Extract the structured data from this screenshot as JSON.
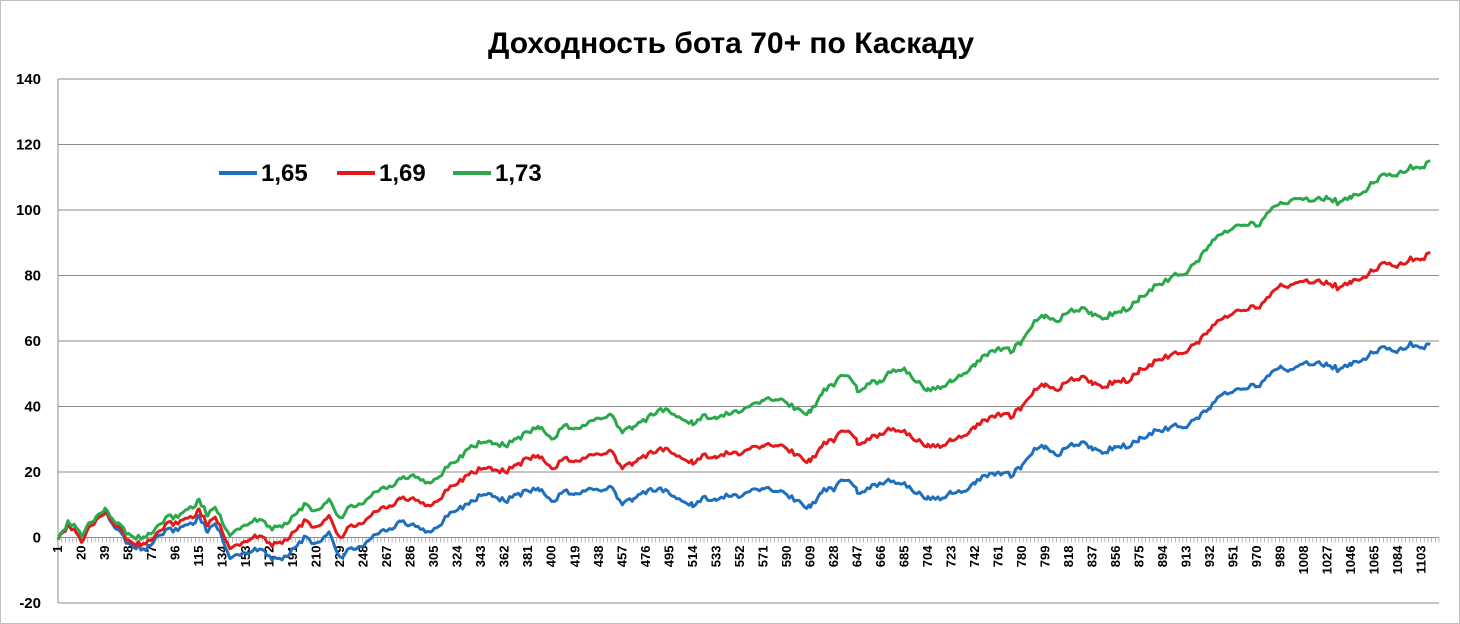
{
  "chart_data": {
    "type": "line",
    "title": "Доходность бота 70+ по Каскаду",
    "xlabel": "",
    "ylabel": "",
    "ylim": [
      -20,
      140
    ],
    "yticks": [
      -20,
      0,
      20,
      40,
      60,
      80,
      100,
      120,
      140
    ],
    "xlim": [
      1,
      1117
    ],
    "xtick_labels": [
      "1",
      "20",
      "39",
      "58",
      "77",
      "96",
      "115",
      "134",
      "153",
      "172",
      "191",
      "210",
      "229",
      "248",
      "267",
      "286",
      "305",
      "324",
      "343",
      "362",
      "381",
      "400",
      "419",
      "438",
      "457",
      "476",
      "495",
      "514",
      "533",
      "552",
      "571",
      "590",
      "609",
      "628",
      "647",
      "666",
      "685",
      "704",
      "723",
      "742",
      "761",
      "780",
      "799",
      "818",
      "837",
      "856",
      "875",
      "894",
      "913",
      "932",
      "951",
      "970",
      "989",
      "1008",
      "1027",
      "1046",
      "1065",
      "1084",
      "1103"
    ],
    "grid": "horizontal",
    "legend_position": "top-left",
    "series": [
      {
        "name": "1,65",
        "color": "#1f6fbf",
        "x": [
          1,
          10,
          20,
          28,
          39,
          50,
          58,
          66,
          72,
          80,
          90,
          100,
          108,
          115,
          122,
          128,
          134,
          140,
          148,
          156,
          164,
          172,
          180,
          190,
          200,
          210,
          220,
          229,
          238,
          248,
          258,
          267,
          278,
          286,
          296,
          305,
          314,
          324,
          333,
          343,
          352,
          362,
          371,
          381,
          390,
          400,
          410,
          419,
          428,
          438,
          447,
          457,
          466,
          476,
          486,
          495,
          505,
          514,
          524,
          533,
          543,
          552,
          562,
          571,
          581,
          590,
          600,
          609,
          618,
          628,
          638,
          647,
          657,
          666,
          676,
          685,
          695,
          704,
          714,
          723,
          733,
          742,
          752,
          761,
          771,
          780,
          790,
          799,
          809,
          818,
          828,
          837,
          847,
          856,
          866,
          875,
          885,
          894,
          904,
          913,
          923,
          932,
          942,
          951,
          961,
          970,
          980,
          989,
          999,
          1008,
          1018,
          1027,
          1037,
          1046,
          1056,
          1065,
          1075,
          1084,
          1094,
          1103,
          1110
        ],
        "values": [
          0,
          4,
          -1,
          4,
          8,
          2,
          -2,
          -3,
          -4,
          0,
          2,
          3,
          4,
          6,
          2,
          4,
          0,
          -7,
          -5,
          -5,
          -3,
          -6,
          -7,
          -4,
          0,
          -2,
          1,
          -6,
          -3,
          -3,
          1,
          2,
          5,
          4,
          2,
          2,
          6,
          9,
          10,
          13,
          13,
          11,
          13,
          14,
          15,
          11,
          14,
          13,
          15,
          14,
          16,
          10,
          12,
          14,
          15,
          14,
          11,
          10,
          12,
          11,
          13,
          12,
          14,
          15,
          14,
          13,
          11,
          9,
          14,
          15,
          18,
          14,
          15,
          17,
          17,
          16,
          14,
          12,
          12,
          14,
          14,
          17,
          19,
          20,
          19,
          22,
          27,
          28,
          25,
          28,
          29,
          27,
          26,
          28,
          28,
          30,
          32,
          33,
          34,
          34,
          37,
          40,
          44,
          45,
          46,
          46,
          50,
          52,
          51,
          53,
          53,
          53,
          51,
          53,
          54,
          57,
          58,
          57,
          59,
          58,
          59
        ]
      },
      {
        "name": "1,69",
        "color": "#e31a1c",
        "x": [
          1,
          10,
          20,
          28,
          39,
          50,
          58,
          66,
          72,
          80,
          90,
          100,
          108,
          115,
          122,
          128,
          134,
          140,
          148,
          156,
          164,
          172,
          180,
          190,
          200,
          210,
          220,
          229,
          238,
          248,
          258,
          267,
          278,
          286,
          296,
          305,
          314,
          324,
          333,
          343,
          352,
          362,
          371,
          381,
          390,
          400,
          410,
          419,
          428,
          438,
          447,
          457,
          466,
          476,
          486,
          495,
          505,
          514,
          524,
          533,
          543,
          552,
          562,
          571,
          581,
          590,
          600,
          609,
          618,
          628,
          638,
          647,
          657,
          666,
          676,
          685,
          695,
          704,
          714,
          723,
          733,
          742,
          752,
          761,
          771,
          780,
          790,
          799,
          809,
          818,
          828,
          837,
          847,
          856,
          866,
          875,
          885,
          894,
          904,
          913,
          923,
          932,
          942,
          951,
          961,
          970,
          980,
          989,
          999,
          1008,
          1018,
          1027,
          1037,
          1046,
          1056,
          1065,
          1075,
          1084,
          1094,
          1103,
          1110
        ],
        "values": [
          0,
          4,
          -1,
          4,
          8,
          3,
          -1,
          -2,
          -2,
          1,
          4,
          5,
          6,
          8,
          4,
          6,
          2,
          -4,
          -2,
          -1,
          1,
          -2,
          -2,
          1,
          5,
          3,
          6,
          0,
          4,
          4,
          8,
          9,
          12,
          12,
          10,
          10,
          14,
          17,
          19,
          21,
          21,
          20,
          22,
          24,
          25,
          21,
          24,
          23,
          25,
          25,
          27,
          21,
          23,
          25,
          27,
          27,
          24,
          23,
          25,
          24,
          26,
          25,
          27,
          28,
          28,
          27,
          25,
          23,
          28,
          30,
          33,
          29,
          30,
          32,
          33,
          32,
          30,
          28,
          28,
          30,
          31,
          34,
          36,
          38,
          37,
          40,
          45,
          47,
          45,
          48,
          49,
          47,
          46,
          48,
          48,
          51,
          53,
          55,
          56,
          57,
          60,
          64,
          67,
          69,
          70,
          70,
          74,
          77,
          77,
          78,
          78,
          78,
          76,
          78,
          79,
          82,
          84,
          83,
          85,
          85,
          87
        ]
      },
      {
        "name": "1,73",
        "color": "#2aa84a",
        "x": [
          1,
          10,
          20,
          28,
          39,
          50,
          58,
          66,
          72,
          80,
          90,
          100,
          108,
          115,
          122,
          128,
          134,
          140,
          148,
          156,
          164,
          172,
          180,
          190,
          200,
          210,
          220,
          229,
          238,
          248,
          258,
          267,
          278,
          286,
          296,
          305,
          314,
          324,
          333,
          343,
          352,
          362,
          371,
          381,
          390,
          400,
          410,
          419,
          428,
          438,
          447,
          457,
          466,
          476,
          486,
          495,
          505,
          514,
          524,
          533,
          543,
          552,
          562,
          571,
          581,
          590,
          600,
          609,
          618,
          628,
          638,
          647,
          657,
          666,
          676,
          685,
          695,
          704,
          714,
          723,
          733,
          742,
          752,
          761,
          771,
          780,
          790,
          799,
          809,
          818,
          828,
          837,
          847,
          856,
          866,
          875,
          885,
          894,
          904,
          913,
          923,
          932,
          942,
          951,
          961,
          970,
          980,
          989,
          999,
          1008,
          1018,
          1027,
          1037,
          1046,
          1056,
          1065,
          1075,
          1084,
          1094,
          1103,
          1110
        ],
        "values": [
          0,
          5,
          1,
          5,
          9,
          4,
          1,
          0,
          0,
          3,
          6,
          7,
          9,
          11,
          7,
          9,
          5,
          0,
          3,
          4,
          6,
          3,
          3,
          6,
          10,
          8,
          11,
          6,
          10,
          10,
          14,
          15,
          18,
          19,
          17,
          17,
          21,
          24,
          27,
          29,
          29,
          28,
          30,
          32,
          34,
          30,
          34,
          33,
          35,
          36,
          38,
          32,
          34,
          36,
          39,
          39,
          36,
          35,
          37,
          36,
          38,
          38,
          40,
          42,
          42,
          41,
          39,
          38,
          44,
          47,
          50,
          45,
          47,
          48,
          51,
          51,
          48,
          45,
          46,
          48,
          50,
          53,
          56,
          58,
          57,
          60,
          66,
          68,
          66,
          69,
          70,
          68,
          67,
          69,
          70,
          73,
          76,
          78,
          80,
          81,
          85,
          90,
          93,
          95,
          96,
          95,
          100,
          102,
          103,
          103,
          103,
          104,
          102,
          104,
          105,
          109,
          111,
          111,
          113,
          113,
          115
        ]
      }
    ]
  }
}
